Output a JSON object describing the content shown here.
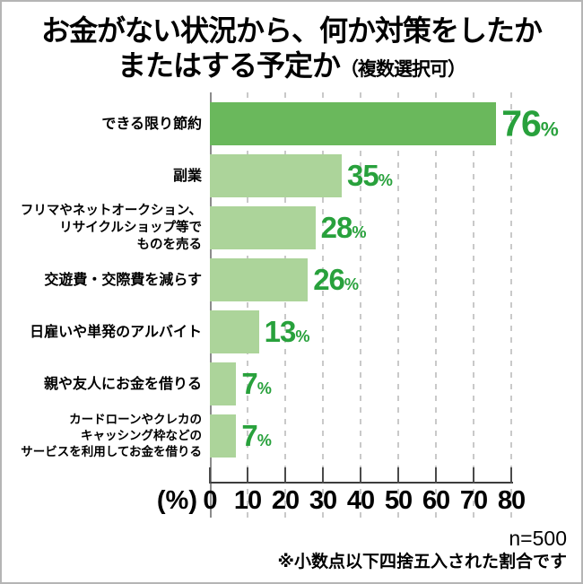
{
  "title": {
    "line1": "お金がない状況から、何か対策をしたか",
    "line2": "またはする予定か",
    "note": "（複数選択可）"
  },
  "chart_data": {
    "type": "bar",
    "orientation": "horizontal",
    "title": "お金がない状況から、何か対策をしたか またはする予定か（複数選択可）",
    "unit": "%",
    "axis_unit_label": "(%)",
    "xlim": [
      0,
      80
    ],
    "x_ticks": [
      0,
      10,
      20,
      30,
      40,
      50,
      60,
      70,
      80
    ],
    "grid": "dashed-vertical",
    "legend": "none",
    "categories": [
      "できる限り節約",
      "副業",
      "フリマやネットオークション、\nリサイクルショップ等で\nものを売る",
      "交遊費・交際費を減らす",
      "日雇いや単発のアルバイト",
      "親や友人にお金を借りる",
      "カードローンやクレカの\nキャッシング枠などの\nサービスを利用してお金を借りる"
    ],
    "values": [
      76,
      35,
      28,
      26,
      13,
      7,
      7
    ],
    "highlight_index": 0,
    "colors": {
      "bar_highlight": "#6ab85c",
      "bar": "#acd49a",
      "value_text": "#28a13c",
      "gridline": "#c9c9c9",
      "zero_line": "#8c8c8c",
      "axis": "#3d3d3d"
    }
  },
  "footer": {
    "sample_size": "n=500",
    "note": "※小数点以下四捨五入された割合です"
  }
}
